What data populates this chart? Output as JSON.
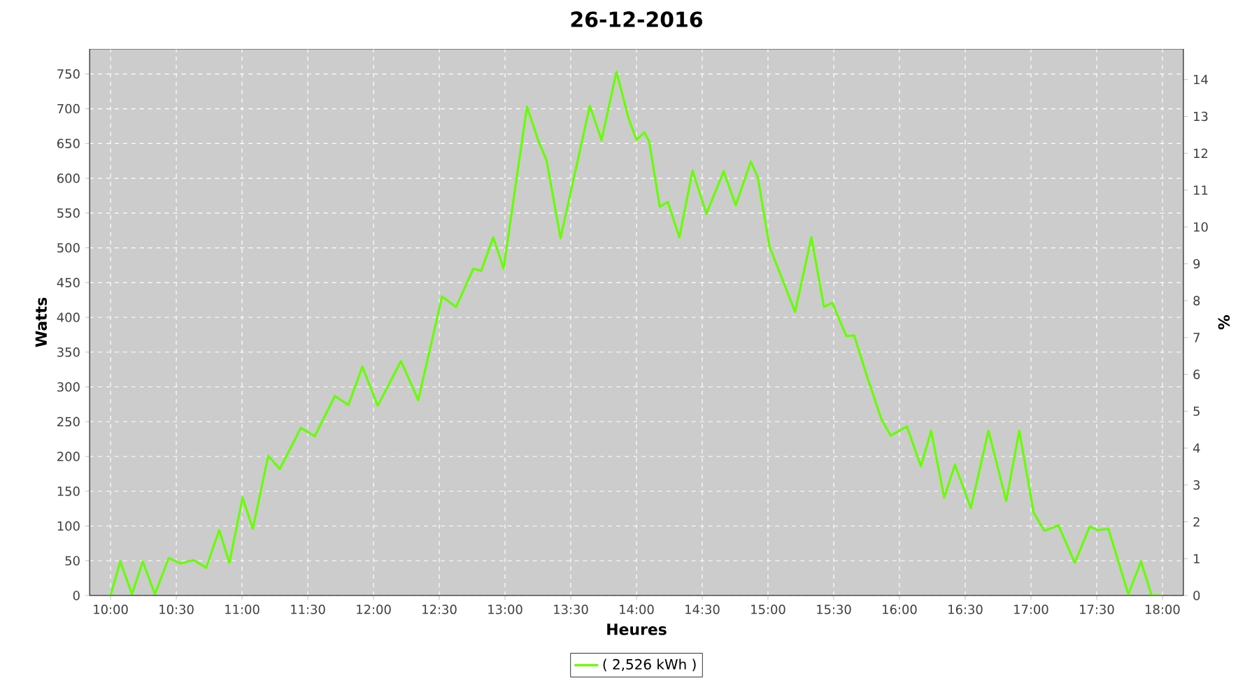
{
  "chart_data": {
    "type": "line",
    "title": "26-12-2016",
    "xlabel": "Heures",
    "ylabel": "Watts",
    "y2label": "%",
    "x": [
      10.0,
      10.074,
      10.163,
      10.245,
      10.337,
      10.443,
      10.532,
      10.631,
      10.727,
      10.826,
      10.904,
      11.004,
      11.082,
      11.199,
      11.287,
      11.447,
      11.553,
      11.706,
      11.809,
      11.915,
      12.032,
      12.209,
      12.34,
      12.521,
      12.628,
      12.759,
      12.819,
      12.911,
      12.989,
      13.167,
      13.255,
      13.316,
      13.422,
      13.645,
      13.734,
      13.848,
      13.94,
      14.0,
      14.06,
      14.096,
      14.177,
      14.238,
      14.326,
      14.426,
      14.532,
      14.663,
      14.755,
      14.869,
      14.922,
      15.011,
      15.082,
      15.206,
      15.33,
      15.426,
      15.489,
      15.596,
      15.656,
      15.755,
      15.862,
      15.933,
      16.057,
      16.163,
      16.241,
      16.34,
      16.422,
      16.543,
      16.677,
      16.812,
      16.911,
      17.021,
      17.103,
      17.209,
      17.333,
      17.447,
      17.511,
      17.589,
      17.741,
      17.837,
      17.918,
      17.996
    ],
    "series": [
      {
        "name": "( 2,526 kWh )",
        "color": "#66ff00",
        "values": [
          0,
          49,
          2,
          49,
          2,
          54,
          46,
          51,
          40,
          94,
          47,
          141,
          96,
          201,
          182,
          241,
          229,
          287,
          274,
          329,
          273,
          337,
          281,
          430,
          415,
          470,
          467,
          515,
          470,
          703,
          653,
          626,
          514,
          704,
          655,
          753,
          686,
          655,
          666,
          653,
          559,
          566,
          515,
          611,
          549,
          610,
          561,
          624,
          602,
          502,
          468,
          408,
          515,
          415,
          421,
          373,
          374,
          314,
          254,
          230,
          243,
          186,
          237,
          141,
          188,
          126,
          237,
          136,
          237,
          119,
          93,
          101,
          47,
          99,
          94,
          96,
          2,
          49,
          0,
          0
        ]
      }
    ],
    "xlim": [
      9.84,
      18.16
    ],
    "xticks": [
      {
        "value": 10,
        "label": "10:00"
      },
      {
        "value": 10.5,
        "label": "10:30"
      },
      {
        "value": 11,
        "label": "11:00"
      },
      {
        "value": 11.5,
        "label": "11:30"
      },
      {
        "value": 12,
        "label": "12:00"
      },
      {
        "value": 12.5,
        "label": "12:30"
      },
      {
        "value": 13,
        "label": "13:00"
      },
      {
        "value": 13.5,
        "label": "13:30"
      },
      {
        "value": 14,
        "label": "14:00"
      },
      {
        "value": 14.5,
        "label": "14:30"
      },
      {
        "value": 15,
        "label": "15:00"
      },
      {
        "value": 15.5,
        "label": "15:30"
      },
      {
        "value": 16,
        "label": "16:00"
      },
      {
        "value": 16.5,
        "label": "16:30"
      },
      {
        "value": 17,
        "label": "17:00"
      },
      {
        "value": 17.5,
        "label": "17:30"
      },
      {
        "value": 18,
        "label": "18:00"
      }
    ],
    "ylim": [
      0,
      786
    ],
    "yticks": [
      0,
      50,
      100,
      150,
      200,
      250,
      300,
      350,
      400,
      450,
      500,
      550,
      600,
      650,
      700,
      750
    ],
    "y2lim": [
      0,
      14.83
    ],
    "y2ticks": [
      0,
      1,
      2,
      3,
      4,
      5,
      6,
      7,
      8,
      9,
      10,
      11,
      12,
      13,
      14
    ],
    "grid": true,
    "legend": "bottom",
    "marker": "none",
    "line_style": "solid"
  }
}
